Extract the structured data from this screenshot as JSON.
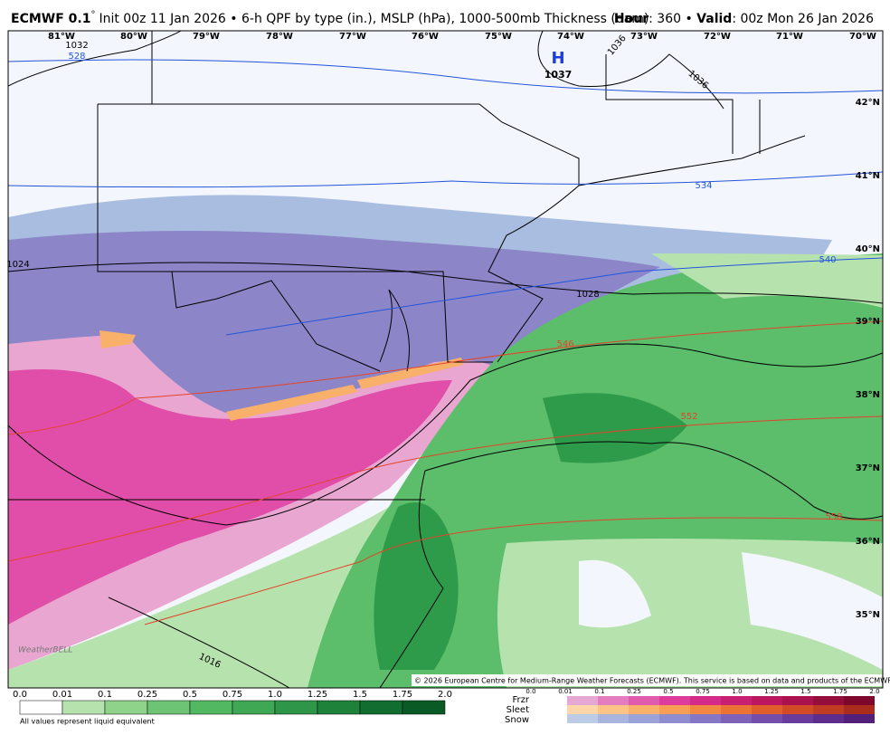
{
  "header": {
    "model": "ECMWF 0.1",
    "degree": "°",
    "description": "Init 00z 11 Jan 2026 • 6-h QPF by type (in.), MSLP (hPa), 1000-500mb Thickness (dam)",
    "hour_label": "Hour",
    "hour": ": 360 • ",
    "valid_label": "Valid",
    "valid": ": 00z Mon 26 Jan 2026"
  },
  "map": {
    "longitudes": [
      "81°W",
      "80°W",
      "79°W",
      "78°W",
      "77°W",
      "76°W",
      "75°W",
      "74°W",
      "73°W",
      "72°W",
      "71°W",
      "70°W"
    ],
    "latitudes": [
      "42°N",
      "41°N",
      "40°N",
      "39°N",
      "38°N",
      "37°N",
      "36°N",
      "35°N"
    ],
    "isobar_labels": [
      "1032",
      "1036",
      "1036",
      "1024",
      "1028",
      "1016"
    ],
    "thickness_labels": [
      "528",
      "534",
      "540",
      "546",
      "552",
      "558"
    ],
    "high": {
      "symbol": "H",
      "pressure": "1037"
    },
    "logo": "WeatherBELL",
    "copyright": "© 2026 European Centre for Medium-Range Weather Forecasts (ECMWF). This service is based on data and products of the ECMWF."
  },
  "legend": {
    "rain_labels": [
      "0.0",
      "0.01",
      "0.1",
      "0.25",
      "0.5",
      "0.75",
      "1.0",
      "1.25",
      "1.5",
      "1.75",
      "2.0"
    ],
    "rain_colors": [
      "#ffffff",
      "#b6e3ad",
      "#8fd38a",
      "#6cc474",
      "#52b862",
      "#3fa855",
      "#2e9648",
      "#1e823b",
      "#116e30",
      "#0a5a26",
      "#06461d"
    ],
    "note": "All values represent liquid equivalent",
    "types": [
      "Frzr",
      "Sleet",
      "Snow"
    ],
    "type_labels": [
      "0.0",
      "0.01",
      "0.1",
      "0.25",
      "0.5",
      "0.75",
      "1.0",
      "1.25",
      "1.5",
      "1.75",
      "2.0"
    ],
    "type_colors": [
      [
        "#e5a8d2",
        "#e37dc0",
        "#e05aae",
        "#dd3c9c",
        "#d52a88",
        "#c91f72",
        "#bb175f",
        "#a9124c",
        "#940d3b",
        "#7e082c"
      ],
      [
        "#fcd6a8",
        "#fbc386",
        "#f9b06a",
        "#f79d54",
        "#f28742",
        "#ea7235",
        "#df5e2c",
        "#d14c26",
        "#bf3b21",
        "#aa2c1c"
      ],
      [
        "#bccbe6",
        "#a9b5df",
        "#9aa2d7",
        "#8f8dcf",
        "#8677c4",
        "#7d62b8",
        "#734eaa",
        "#693c9b",
        "#5e2c8b",
        "#521f7a"
      ]
    ]
  }
}
